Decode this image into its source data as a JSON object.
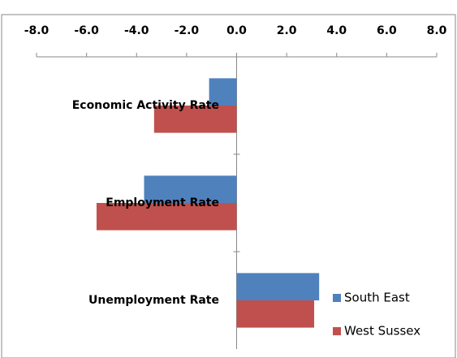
{
  "chart_data": {
    "type": "hbar",
    "categories": [
      "Economic Activity Rate",
      "Employment Rate",
      "Unemployment Rate"
    ],
    "series": [
      {
        "name": "South East",
        "color": "#4f81bd",
        "values": [
          -1.1,
          -3.7,
          3.3
        ]
      },
      {
        "name": "West Sussex",
        "color": "#c0504d",
        "values": [
          -3.3,
          -5.6,
          3.1
        ]
      }
    ],
    "xlim": [
      -8,
      8
    ],
    "xticks": [
      {
        "value": -8,
        "label": "-8.0"
      },
      {
        "value": -6,
        "label": "-6.0"
      },
      {
        "value": -4,
        "label": "-4.0"
      },
      {
        "value": -2,
        "label": "-2.0"
      },
      {
        "value": 0,
        "label": "0.0"
      },
      {
        "value": 2,
        "label": "2.0"
      },
      {
        "value": 4,
        "label": "4.0"
      },
      {
        "value": 6,
        "label": "6.0"
      },
      {
        "value": 8,
        "label": "8.0"
      }
    ],
    "legend": "bottom-right"
  }
}
